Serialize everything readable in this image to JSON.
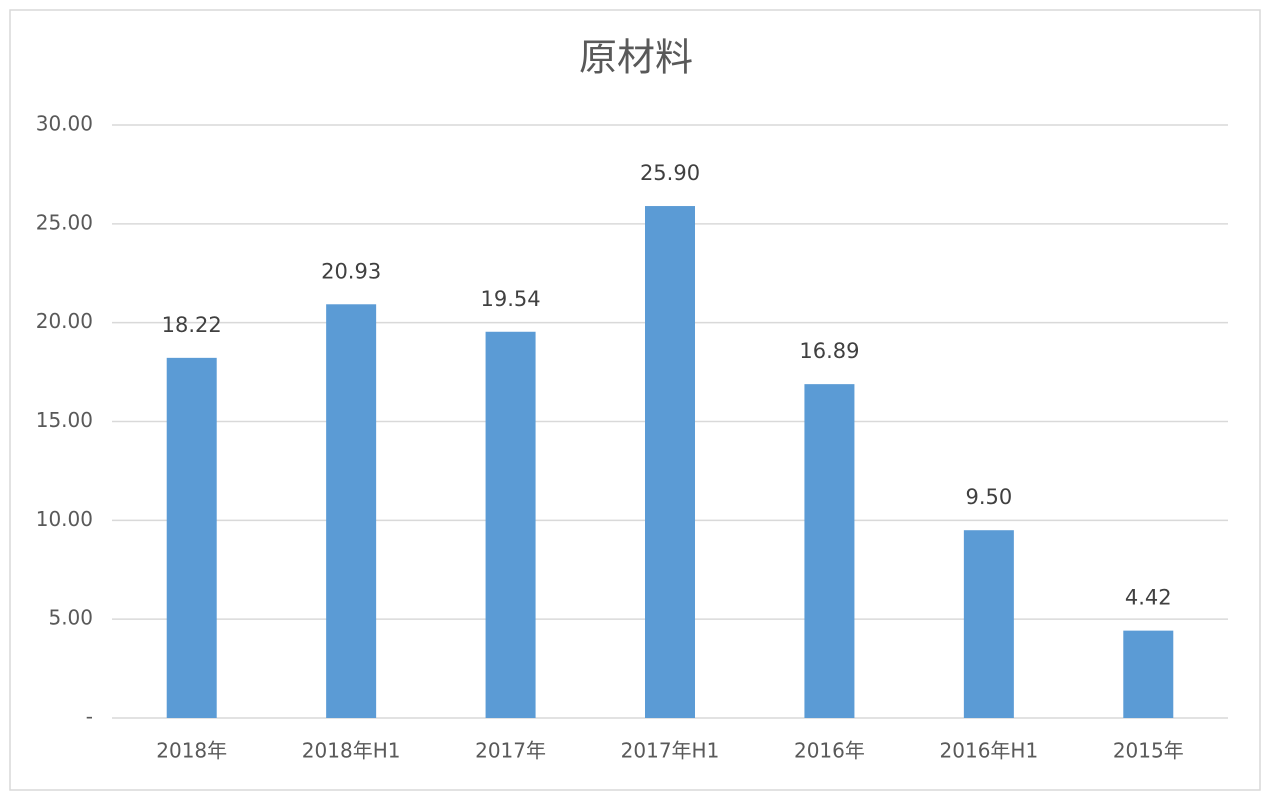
{
  "chart_data": {
    "type": "bar",
    "title": "原材料",
    "categories": [
      "2018年",
      "2018年H1",
      "2017年",
      "2017年H1",
      "2016年",
      "2016年H1",
      "2015年"
    ],
    "values": [
      18.22,
      20.93,
      19.54,
      25.9,
      16.89,
      9.5,
      4.42
    ],
    "value_labels": [
      "18.22",
      "20.93",
      "19.54",
      "25.90",
      "16.89",
      "9.50",
      "4.42"
    ],
    "color": "#5b9bd5",
    "ylim": [
      0,
      30
    ],
    "yticks": [
      {
        "value": 0,
        "label": "-"
      },
      {
        "value": 5,
        "label": "5.00"
      },
      {
        "value": 10,
        "label": "10.00"
      },
      {
        "value": 15,
        "label": "15.00"
      },
      {
        "value": 20,
        "label": "20.00"
      },
      {
        "value": 25,
        "label": "25.00"
      },
      {
        "value": 30,
        "label": "30.00"
      }
    ],
    "grid": true
  }
}
